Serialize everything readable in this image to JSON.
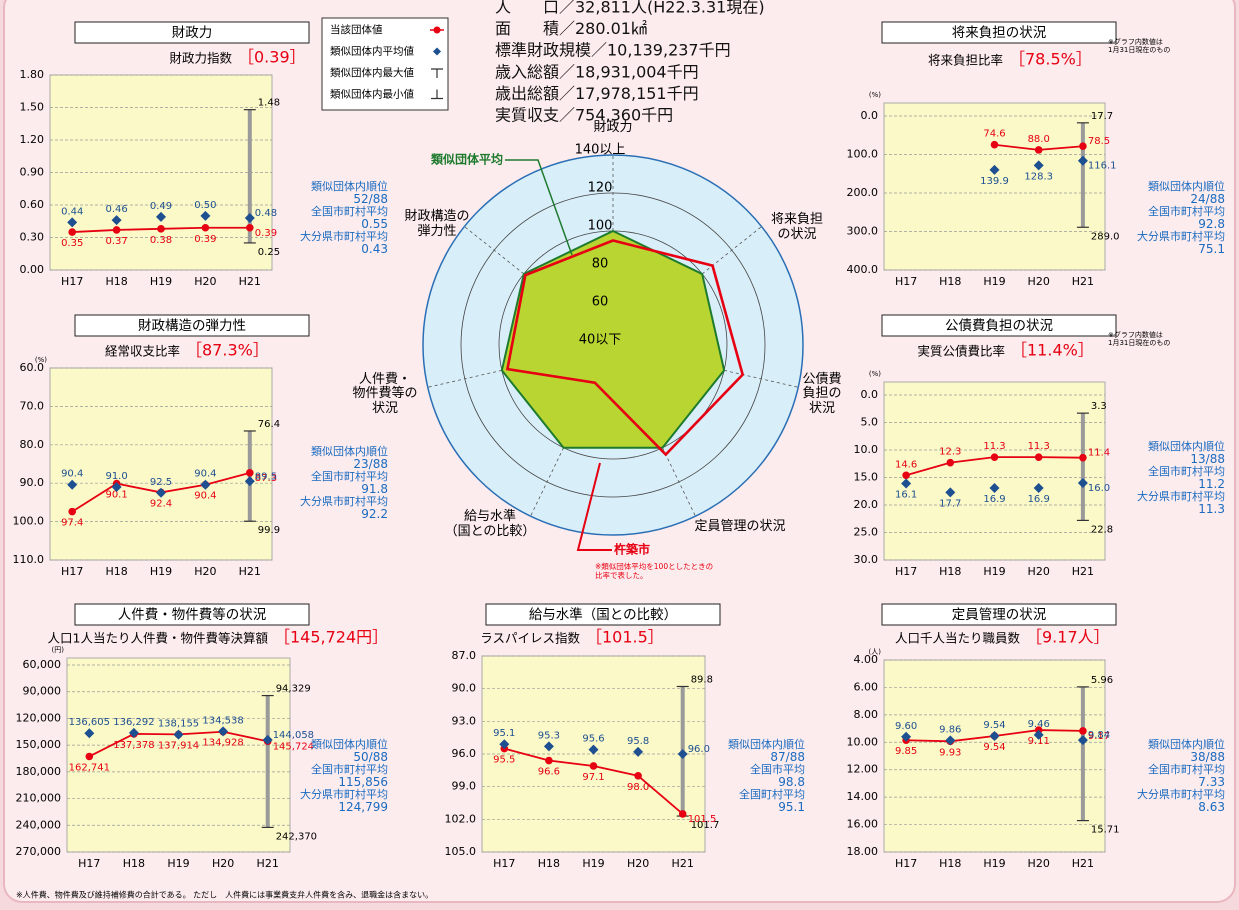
{
  "legend": [
    "当該団体値",
    "類似団体内平均値",
    "類似団体内最大値",
    "類似団体内最小値"
  ],
  "info": [
    "人　　口／32,811人(H22.3.31現在)",
    "面　　積／280.01㎢",
    "標準財政規模／10,139,237千円",
    "歳入総額／18,931,004千円",
    "歳出総額／17,978,151千円",
    "実質収支／754,360千円"
  ],
  "footnote": "※人件費、物件費及び維持補修費の合計である。 ただし　人件費には事業費支弁人件費を含み、退職金は含まない。",
  "chart_data": [
    {
      "type": "line",
      "title": "財政力",
      "subtitle": "財政力指数",
      "headline": "［0.39］",
      "categories": [
        "H17",
        "H18",
        "H19",
        "H20",
        "H21"
      ],
      "ylim": [
        0,
        1.8
      ],
      "y_inverted": false,
      "grid": true,
      "yticks": [
        {
          "value": 0,
          "label": "0.00"
        },
        {
          "value": 0.3,
          "label": "0.30"
        },
        {
          "value": 0.6,
          "label": "0.60"
        },
        {
          "value": 0.9,
          "label": "0.90"
        },
        {
          "value": 1.2,
          "label": "1.20"
        },
        {
          "value": 1.5,
          "label": "1.50"
        },
        {
          "value": 1.8,
          "label": "1.80"
        }
      ],
      "series": [
        {
          "color": "#e60012",
          "line": true,
          "marker": "circle",
          "values": [
            0.35,
            0.37,
            0.38,
            0.39,
            0.39
          ]
        },
        {
          "color": "#1d4f91",
          "line": false,
          "marker": "diamond",
          "values": [
            0.44,
            0.46,
            0.49,
            0.5,
            0.48
          ],
          "value_labels": [
            "0.44",
            "0.46",
            "0.49",
            "0.50",
            "0.48"
          ]
        }
      ],
      "range": [
        1.48,
        0.25
      ],
      "stats": [
        {
          "label": "類似団体内順位",
          "value": "52/88"
        },
        {
          "label": "全国市町村平均",
          "value": "0.55"
        },
        {
          "label": "大分県市町村平均",
          "value": "0.43"
        }
      ]
    },
    {
      "type": "line",
      "title": "将来負担の状況",
      "subtitle": "将来負担比率",
      "headline": "［78.5%］",
      "unit": "(%)",
      "note": "※グラフ内数値は\n1月31日現在のもの",
      "categories": [
        "H17",
        "H18",
        "H19",
        "H20",
        "H21"
      ],
      "ylim": [
        0,
        400
      ],
      "y_inverted": true,
      "grid": true,
      "yticks": [
        {
          "value": 0,
          "label": "0.0"
        },
        {
          "value": 100,
          "label": "100.0"
        },
        {
          "value": 200,
          "label": "200.0"
        },
        {
          "value": 300,
          "label": "300.0"
        },
        {
          "value": 400,
          "label": "400.0"
        }
      ],
      "series": [
        {
          "color": "#e60012",
          "line": true,
          "marker": "circle",
          "values": [
            null,
            null,
            74.6,
            88.0,
            78.5
          ],
          "value_labels": [
            null,
            null,
            "74.6",
            "88.0",
            "78.5"
          ]
        },
        {
          "color": "#1d4f91",
          "line": false,
          "marker": "diamond",
          "values": [
            null,
            null,
            139.9,
            128.3,
            116.1
          ]
        }
      ],
      "range": [
        17.7,
        289.0
      ],
      "range_labels": [
        "17.7",
        "289.0"
      ],
      "stats": [
        {
          "label": "類似団体内順位",
          "value": "24/88"
        },
        {
          "label": "全国市町村平均",
          "value": "92.8"
        },
        {
          "label": "大分県市町村平均",
          "value": "75.1"
        }
      ]
    },
    {
      "type": "line",
      "title": "財政構造の弾力性",
      "subtitle": "経常収支比率",
      "headline": "［87.3%］",
      "unit": "(%)",
      "categories": [
        "H17",
        "H18",
        "H19",
        "H20",
        "H21"
      ],
      "ylim": [
        60,
        110
      ],
      "y_inverted": true,
      "grid": true,
      "yticks": [
        {
          "value": 60,
          "label": "60.0"
        },
        {
          "value": 70,
          "label": "70.0"
        },
        {
          "value": 80,
          "label": "80.0"
        },
        {
          "value": 90,
          "label": "90.0"
        },
        {
          "value": 100,
          "label": "100.0"
        },
        {
          "value": 110,
          "label": "110.0"
        }
      ],
      "series": [
        {
          "color": "#e60012",
          "line": true,
          "marker": "circle",
          "values": [
            97.4,
            90.1,
            92.4,
            90.4,
            87.3
          ]
        },
        {
          "color": "#1d4f91",
          "line": false,
          "marker": "diamond",
          "values": [
            90.4,
            91.0,
            92.5,
            90.4,
            89.5
          ],
          "value_labels": [
            "90.4",
            "91.0",
            "92.5",
            "90.4",
            "89.5"
          ]
        }
      ],
      "range": [
        76.4,
        99.9
      ],
      "stats": [
        {
          "label": "類似団体内順位",
          "value": "23/88"
        },
        {
          "label": "全国市町村平均",
          "value": "91.8"
        },
        {
          "label": "大分県市町村平均",
          "value": "92.2"
        }
      ]
    },
    {
      "type": "line",
      "title": "公債費負担の状況",
      "subtitle": "実質公債費比率",
      "headline": "［11.4%］",
      "unit": "(%)",
      "note": "※グラフ内数値は\n1月31日現在のもの",
      "categories": [
        "H17",
        "H18",
        "H19",
        "H20",
        "H21"
      ],
      "ylim": [
        0,
        30
      ],
      "y_inverted": true,
      "grid": true,
      "yticks": [
        {
          "value": 0,
          "label": "0.0"
        },
        {
          "value": 5,
          "label": "5.0"
        },
        {
          "value": 10,
          "label": "10.0"
        },
        {
          "value": 15,
          "label": "15.0"
        },
        {
          "value": 20,
          "label": "20.0"
        },
        {
          "value": 25,
          "label": "25.0"
        },
        {
          "value": 30,
          "label": "30.0"
        }
      ],
      "series": [
        {
          "color": "#e60012",
          "line": true,
          "marker": "circle",
          "values": [
            14.6,
            12.3,
            11.3,
            11.3,
            11.4
          ]
        },
        {
          "color": "#1d4f91",
          "line": false,
          "marker": "diamond",
          "values": [
            16.1,
            17.7,
            16.9,
            16.9,
            16.0
          ],
          "value_labels": [
            "16.1",
            "17.7",
            "16.9",
            "16.9",
            "16.0"
          ]
        }
      ],
      "range": [
        3.3,
        22.8
      ],
      "stats": [
        {
          "label": "類似団体内順位",
          "value": "13/88"
        },
        {
          "label": "全国市町村平均",
          "value": "11.2"
        },
        {
          "label": "大分県市町村平均",
          "value": "11.3"
        }
      ]
    },
    {
      "type": "line",
      "title": "人件費・物件費等の状況",
      "subtitle": "人口1人当たり人件費・物件費等決算額",
      "headline": "［145,724円］",
      "unit": "(円)",
      "categories": [
        "H17",
        "H18",
        "H19",
        "H20",
        "H21"
      ],
      "ylim": [
        60000,
        270000
      ],
      "y_inverted": true,
      "grid": true,
      "yticks": [
        {
          "value": 60000,
          "label": "60,000"
        },
        {
          "value": 90000,
          "label": "90,000"
        },
        {
          "value": 120000,
          "label": "120,000"
        },
        {
          "value": 150000,
          "label": "150,000"
        },
        {
          "value": 180000,
          "label": "180,000"
        },
        {
          "value": 210000,
          "label": "210,000"
        },
        {
          "value": 240000,
          "label": "240,000"
        },
        {
          "value": 270000,
          "label": "270,000"
        }
      ],
      "series": [
        {
          "color": "#e60012",
          "line": true,
          "marker": "circle",
          "values": [
            162741,
            137378,
            137914,
            134928,
            145724
          ],
          "value_labels": [
            "162,741",
            "137,378",
            "137,914",
            "134,928",
            "145,724"
          ]
        },
        {
          "color": "#1d4f91",
          "line": false,
          "marker": "diamond",
          "values": [
            136605,
            136292,
            138155,
            134538,
            144058
          ],
          "value_labels": [
            "136,605",
            "136,292",
            "138,155",
            "134,538",
            "144,058"
          ]
        }
      ],
      "range": [
        94329,
        242370
      ],
      "range_labels": [
        "94,329",
        "242,370"
      ],
      "stats": [
        {
          "label": "類似団体内順位",
          "value": "50/88"
        },
        {
          "label": "全国市町村平均",
          "value": "115,856"
        },
        {
          "label": "大分県市町村平均",
          "value": "124,799"
        }
      ]
    },
    {
      "type": "line",
      "title": "給与水準（国との比較）",
      "subtitle": "ラスパイレス指数",
      "headline": "［101.5］",
      "categories": [
        "H17",
        "H18",
        "H19",
        "H20",
        "H21"
      ],
      "ylim": [
        87,
        105
      ],
      "y_inverted": true,
      "grid": true,
      "yticks": [
        {
          "value": 87,
          "label": "87.0"
        },
        {
          "value": 90,
          "label": "90.0"
        },
        {
          "value": 93,
          "label": "93.0"
        },
        {
          "value": 96,
          "label": "96.0"
        },
        {
          "value": 99,
          "label": "99.0"
        },
        {
          "value": 102,
          "label": "102.0"
        },
        {
          "value": 105,
          "label": "105.0"
        }
      ],
      "series": [
        {
          "color": "#e60012",
          "line": true,
          "marker": "circle",
          "values": [
            95.5,
            96.6,
            97.1,
            98.0,
            101.5
          ],
          "value_labels": [
            "95.5",
            "96.6",
            "97.1",
            "98.0",
            "101.5"
          ]
        },
        {
          "color": "#1d4f91",
          "line": false,
          "marker": "diamond",
          "values": [
            95.1,
            95.3,
            95.6,
            95.8,
            96.0
          ],
          "value_labels": [
            "95.1",
            "95.3",
            "95.6",
            "95.8",
            "96.0"
          ]
        }
      ],
      "range": [
        89.8,
        101.7
      ],
      "stats": [
        {
          "label": "類似団体内順位",
          "value": "87/88"
        },
        {
          "label": "全国市平均",
          "value": "98.8"
        },
        {
          "label": "全国町村平均",
          "value": "95.1"
        }
      ]
    },
    {
      "type": "line",
      "title": "定員管理の状況",
      "subtitle": "人口千人当たり職員数",
      "headline": "［9.17人］",
      "unit": "(人)",
      "categories": [
        "H17",
        "H18",
        "H19",
        "H20",
        "H21"
      ],
      "ylim": [
        4,
        18
      ],
      "y_inverted": true,
      "grid": true,
      "yticks": [
        {
          "value": 4,
          "label": "4.00"
        },
        {
          "value": 6,
          "label": "6.00"
        },
        {
          "value": 8,
          "label": "8.00"
        },
        {
          "value": 10,
          "label": "10.00"
        },
        {
          "value": 12,
          "label": "12.00"
        },
        {
          "value": 14,
          "label": "14.00"
        },
        {
          "value": 16,
          "label": "16.00"
        },
        {
          "value": 18,
          "label": "18.00"
        }
      ],
      "series": [
        {
          "color": "#e60012",
          "line": true,
          "marker": "circle",
          "values": [
            9.85,
            9.93,
            9.54,
            9.11,
            9.17
          ]
        },
        {
          "color": "#1d4f91",
          "line": false,
          "marker": "diamond",
          "values": [
            9.6,
            9.86,
            9.54,
            9.46,
            9.84
          ],
          "value_labels": [
            "9.60",
            "9.86",
            "9.54",
            "9.46",
            "9.84"
          ]
        }
      ],
      "range": [
        5.96,
        15.71
      ],
      "stats": [
        {
          "label": "類似団体内順位",
          "value": "38/88"
        },
        {
          "label": "全国市町村平均",
          "value": "7.33"
        },
        {
          "label": "大分県市町村平均",
          "value": "8.63"
        }
      ]
    },
    {
      "type": "radar",
      "categories": [
        "財政力",
        "将来負担\nの状況",
        "公債費\n負担の\n状況",
        "定員管理の状況",
        "給与水準\n（国との比較）",
        "人件費・\n物件費等の\n状況",
        "財政構造の\n弾力性"
      ],
      "rlim": [
        40,
        140
      ],
      "rticks": [
        {
          "value": 40,
          "label": "40以下"
        },
        60,
        80,
        100,
        120,
        {
          "value": 140,
          "label": "140以上"
        }
      ],
      "series": [
        {
          "name": "類似団体平均",
          "color": "#1e7b2e",
          "fill": "#b9d531",
          "values": [
            100,
            100,
            100,
            100,
            100,
            100,
            100
          ]
        },
        {
          "name": "杵築市",
          "color": "#e60012",
          "values": [
            95,
            107,
            110,
            104,
            62,
            97,
            99
          ]
        }
      ],
      "note": "※類似団体平均を100としたときの\n比率で表した。"
    }
  ]
}
